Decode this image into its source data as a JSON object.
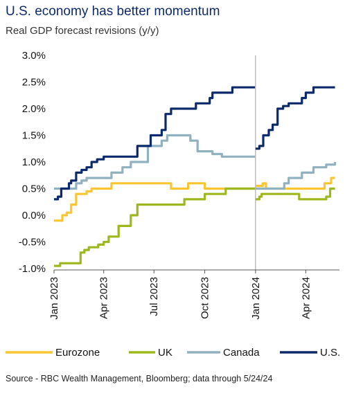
{
  "header": {
    "title": "U.S. economy has better momentum",
    "subtitle": "Real GDP forecast revisions (y/y)"
  },
  "footer": {
    "source": "Source - RBC Wealth Management, Bloomberg; data through 5/24/24"
  },
  "chart_data": {
    "type": "line",
    "title": "U.S. economy has better momentum",
    "subtitle": "Real GDP forecast revisions (y/y)",
    "xlabel": "",
    "ylabel": "",
    "ylim": [
      -1.0,
      3.0
    ],
    "yticks": [
      3.0,
      2.5,
      2.0,
      1.5,
      1.0,
      0.5,
      0.0,
      -0.5,
      -1.0
    ],
    "ytick_labels": [
      "3.0%",
      "2.5%",
      "2.0%",
      "1.5%",
      "1.0%",
      "0.5%",
      "0.0%",
      "-0.5%",
      "-1.0%"
    ],
    "x_axis_type": "date",
    "xlim": [
      "2023-01-01",
      "2024-06-01"
    ],
    "xticks": [
      "2023-01-01",
      "2023-04-01",
      "2023-07-01",
      "2023-10-01",
      "2024-01-01",
      "2024-04-01"
    ],
    "xtick_labels": [
      "Jan 2023",
      "Apr 2023",
      "Jul 2023",
      "Oct 2023",
      "Jan 2024",
      "Apr 2024"
    ],
    "divider_date": "2024-01-01",
    "grid": false,
    "legend_position": "bottom",
    "series": [
      {
        "name": "Eurozone",
        "color": "#fbc531",
        "segments": [
          {
            "x": [
              "2023-01-01",
              "2023-01-10",
              "2023-01-16",
              "2023-01-24",
              "2023-02-01",
              "2023-02-10",
              "2023-02-18",
              "2023-03-01",
              "2023-03-10",
              "2023-03-20",
              "2023-04-01",
              "2023-04-15",
              "2023-05-01",
              "2023-05-15",
              "2023-06-01",
              "2023-06-15",
              "2023-07-01",
              "2023-07-20",
              "2023-08-01",
              "2023-08-15",
              "2023-09-01",
              "2023-09-15",
              "2023-10-01",
              "2023-10-15",
              "2023-11-01",
              "2023-11-15",
              "2023-12-01",
              "2023-12-15",
              "2023-12-31"
            ],
            "y": [
              -0.1,
              -0.1,
              0.0,
              0.05,
              0.2,
              0.4,
              0.4,
              0.45,
              0.5,
              0.5,
              0.5,
              0.6,
              0.6,
              0.6,
              0.6,
              0.6,
              0.6,
              0.6,
              0.5,
              0.5,
              0.6,
              0.6,
              0.5,
              0.5,
              0.5,
              0.5,
              0.5,
              0.5,
              0.5
            ]
          },
          {
            "x": [
              "2024-01-01",
              "2024-01-10",
              "2024-01-14",
              "2024-01-20",
              "2024-02-01",
              "2024-02-15",
              "2024-03-01",
              "2024-03-15",
              "2024-04-01",
              "2024-04-15",
              "2024-05-01",
              "2024-05-05",
              "2024-05-12",
              "2024-05-17",
              "2024-05-24"
            ],
            "y": [
              0.55,
              0.55,
              0.6,
              0.5,
              0.5,
              0.5,
              0.5,
              0.5,
              0.5,
              0.5,
              0.5,
              0.6,
              0.6,
              0.7,
              0.7
            ]
          }
        ]
      },
      {
        "name": "UK",
        "color": "#9cb81c",
        "segments": [
          {
            "x": [
              "2023-01-01",
              "2023-01-08",
              "2023-01-12",
              "2023-01-22",
              "2023-02-10",
              "2023-02-18",
              "2023-02-25",
              "2023-03-05",
              "2023-03-12",
              "2023-03-22",
              "2023-04-01",
              "2023-04-10",
              "2023-04-20",
              "2023-04-28",
              "2023-05-10",
              "2023-05-20",
              "2023-06-01",
              "2023-06-15",
              "2023-07-01",
              "2023-07-15",
              "2023-08-01",
              "2023-08-15",
              "2023-08-25",
              "2023-09-10",
              "2023-09-15",
              "2023-10-01",
              "2023-10-15",
              "2023-11-01",
              "2023-11-08",
              "2023-11-15",
              "2023-12-01",
              "2023-12-31"
            ],
            "y": [
              -0.95,
              -0.95,
              -0.9,
              -0.9,
              -0.9,
              -0.7,
              -0.65,
              -0.6,
              -0.6,
              -0.55,
              -0.5,
              -0.4,
              -0.4,
              -0.2,
              -0.2,
              0.0,
              0.2,
              0.2,
              0.2,
              0.2,
              0.2,
              0.2,
              0.3,
              0.3,
              0.3,
              0.4,
              0.4,
              0.4,
              0.5,
              0.5,
              0.5,
              0.5
            ]
          },
          {
            "x": [
              "2024-01-01",
              "2024-01-08",
              "2024-01-12",
              "2024-02-01",
              "2024-02-15",
              "2024-03-01",
              "2024-03-15",
              "2024-03-20",
              "2024-04-01",
              "2024-04-15",
              "2024-05-01",
              "2024-05-08",
              "2024-05-15",
              "2024-05-24"
            ],
            "y": [
              0.3,
              0.35,
              0.4,
              0.4,
              0.4,
              0.4,
              0.4,
              0.3,
              0.3,
              0.3,
              0.3,
              0.35,
              0.5,
              0.5
            ]
          }
        ]
      },
      {
        "name": "Canada",
        "color": "#8fb1c0",
        "segments": [
          {
            "x": [
              "2023-01-01",
              "2023-01-12",
              "2023-01-28",
              "2023-02-10",
              "2023-02-20",
              "2023-03-01",
              "2023-03-10",
              "2023-03-15",
              "2023-04-01",
              "2023-04-08",
              "2023-04-15",
              "2023-05-01",
              "2023-05-05",
              "2023-05-10",
              "2023-05-20",
              "2023-06-01",
              "2023-06-10",
              "2023-06-20",
              "2023-06-26",
              "2023-07-01",
              "2023-07-15",
              "2023-07-25",
              "2023-08-01",
              "2023-08-15",
              "2023-08-25",
              "2023-09-05",
              "2023-09-12",
              "2023-09-18",
              "2023-10-01",
              "2023-10-08",
              "2023-10-15",
              "2023-11-01",
              "2023-12-01",
              "2023-12-31"
            ],
            "y": [
              0.5,
              0.5,
              0.5,
              0.6,
              0.65,
              0.7,
              0.7,
              0.7,
              0.7,
              0.7,
              0.8,
              0.8,
              0.9,
              0.9,
              1.0,
              1.0,
              1.0,
              1.3,
              1.3,
              1.3,
              1.4,
              1.5,
              1.5,
              1.5,
              1.5,
              1.4,
              1.4,
              1.2,
              1.2,
              1.2,
              1.15,
              1.1,
              1.1,
              1.1
            ]
          },
          {
            "x": [
              "2024-01-01",
              "2024-01-15",
              "2024-02-01",
              "2024-02-15",
              "2024-02-22",
              "2024-03-01",
              "2024-03-15",
              "2024-03-25",
              "2024-04-01",
              "2024-04-10",
              "2024-04-15",
              "2024-05-01",
              "2024-05-08",
              "2024-05-15",
              "2024-05-24"
            ],
            "y": [
              0.5,
              0.5,
              0.5,
              0.5,
              0.6,
              0.7,
              0.7,
              0.8,
              0.8,
              0.8,
              0.9,
              0.9,
              0.95,
              0.95,
              1.0
            ]
          }
        ]
      },
      {
        "name": "U.S.",
        "color": "#0b2a6b",
        "segments": [
          {
            "x": [
              "2023-01-01",
              "2023-01-08",
              "2023-01-14",
              "2023-01-28",
              "2023-02-01",
              "2023-02-10",
              "2023-02-20",
              "2023-03-01",
              "2023-03-10",
              "2023-03-20",
              "2023-04-01",
              "2023-04-10",
              "2023-04-20",
              "2023-05-01",
              "2023-05-10",
              "2023-05-20",
              "2023-06-01",
              "2023-06-15",
              "2023-06-25",
              "2023-07-01",
              "2023-07-15",
              "2023-07-22",
              "2023-08-01",
              "2023-08-05",
              "2023-08-15",
              "2023-09-01",
              "2023-09-15",
              "2023-10-01",
              "2023-10-10",
              "2023-10-15",
              "2023-11-01",
              "2023-11-10",
              "2023-11-20",
              "2023-12-01",
              "2023-12-15",
              "2023-12-31"
            ],
            "y": [
              0.3,
              0.35,
              0.5,
              0.6,
              0.65,
              0.8,
              0.85,
              0.9,
              1.0,
              1.05,
              1.1,
              1.1,
              1.1,
              1.1,
              1.1,
              1.1,
              1.3,
              1.3,
              1.5,
              1.5,
              1.6,
              1.9,
              2.0,
              2.0,
              2.0,
              2.0,
              2.1,
              2.1,
              2.2,
              2.3,
              2.3,
              2.3,
              2.4,
              2.4,
              2.4,
              2.4
            ]
          },
          {
            "x": [
              "2024-01-01",
              "2024-01-08",
              "2024-01-15",
              "2024-01-25",
              "2024-02-01",
              "2024-02-10",
              "2024-02-20",
              "2024-03-01",
              "2024-03-15",
              "2024-03-25",
              "2024-04-01",
              "2024-04-10",
              "2024-04-15",
              "2024-05-01",
              "2024-05-15",
              "2024-05-24"
            ],
            "y": [
              1.25,
              1.3,
              1.5,
              1.6,
              1.7,
              2.0,
              2.05,
              2.1,
              2.1,
              2.2,
              2.3,
              2.3,
              2.4,
              2.4,
              2.4,
              2.4
            ]
          }
        ]
      }
    ]
  },
  "legend": {
    "items": [
      {
        "name": "Eurozone",
        "color": "#fbc531"
      },
      {
        "name": "UK",
        "color": "#9cb81c"
      },
      {
        "name": "Canada",
        "color": "#8fb1c0"
      },
      {
        "name": "U.S.",
        "color": "#0b2a6b"
      }
    ]
  }
}
